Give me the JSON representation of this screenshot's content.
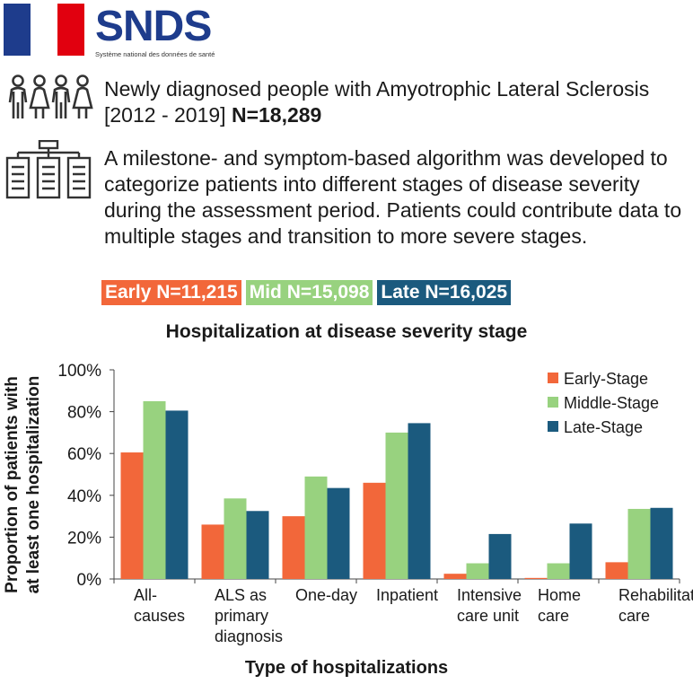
{
  "header": {
    "logo_text": "SNDS",
    "logo_subtitle": "Système national des données de santé"
  },
  "population": {
    "text": "Newly diagnosed people with Amyotrophic Lateral Sclerosis [2012 - 2019]",
    "n": "N=18,289"
  },
  "algorithm": {
    "text": "A milestone- and symptom-based algorithm was developed to categorize patients into different stages of disease severity during the assessment period. Patients could contribute data to multiple stages and transition to more severe stages."
  },
  "stage_counts": {
    "early": "Early N=11,215",
    "mid": "Mid N=15,098",
    "late": "Late N=16,025"
  },
  "colors": {
    "early": "#f2673a",
    "mid": "#98d27f",
    "late": "#1b5a7e",
    "flag_blue": "#1e3c8c",
    "flag_red": "#e1000f"
  },
  "chart_data": {
    "type": "bar",
    "title": "Hospitalization at disease severity stage",
    "xlabel": "Type of hospitalizations",
    "ylabel": "Proportion of  patients with at least one hospitalization",
    "ylim": [
      0,
      100
    ],
    "yticks": [
      "0%",
      "20%",
      "40%",
      "60%",
      "80%",
      "100%"
    ],
    "legend_position": "top-right",
    "categories": [
      [
        "All-",
        "causes"
      ],
      [
        "ALS as",
        "primary",
        "diagnosis"
      ],
      [
        "One-day"
      ],
      [
        "Inpatient"
      ],
      [
        "Intensive",
        "care unit"
      ],
      [
        "Home",
        "care"
      ],
      [
        "Rehabilitation",
        "care"
      ]
    ],
    "series": [
      {
        "name": "Early-Stage",
        "color": "#f2673a",
        "values": [
          60.5,
          26,
          30,
          46,
          2.5,
          0.5,
          8
        ]
      },
      {
        "name": "Middle-Stage",
        "color": "#98d27f",
        "values": [
          85,
          38.5,
          49,
          70,
          7.5,
          7.5,
          33.5
        ]
      },
      {
        "name": "Late-Stage",
        "color": "#1b5a7e",
        "values": [
          80.5,
          32.5,
          43.5,
          74.5,
          21.5,
          26.5,
          34
        ]
      }
    ]
  }
}
